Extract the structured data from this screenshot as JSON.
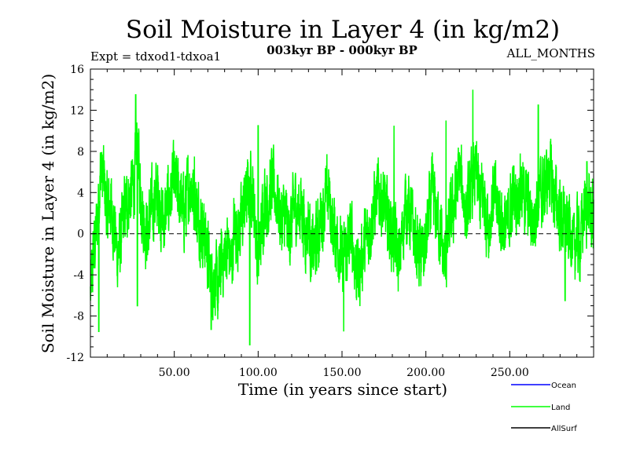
{
  "chart_data": {
    "type": "line",
    "title": "Soil Moisture in Layer 4 (in kg/m2)",
    "subtitle": "003kyr BP - 000kyr BP",
    "experiment": "Expt = tdxod1-tdxoa1",
    "months_label": "ALL_MONTHS",
    "xlabel": "Time (in years since start)",
    "ylabel": "Soil Moisture in Layer 4 (in kg/m2)",
    "xlim": [
      0,
      300
    ],
    "ylim": [
      -12,
      16
    ],
    "xticks": [
      50,
      100,
      150,
      200,
      250
    ],
    "xtick_labels": [
      "50.00",
      "100.00",
      "150.00",
      "200.00",
      "250.00"
    ],
    "yticks": [
      -12,
      -8,
      -4,
      0,
      4,
      8,
      12,
      16
    ],
    "ytick_labels": [
      "-12",
      "-8",
      "-4",
      "0",
      "4",
      "8",
      "12",
      "16"
    ],
    "zero_line": 0,
    "samples_per_year": 12,
    "series": [
      {
        "name": "Land",
        "color": "#00ff00",
        "anchors_x": [
          0,
          2,
          4,
          6,
          8,
          10,
          12,
          14,
          16,
          18,
          20,
          22,
          24,
          26,
          28,
          30,
          32,
          34,
          36,
          38,
          40,
          42,
          44,
          46,
          48,
          50,
          52,
          54,
          56,
          58,
          60,
          62,
          64,
          66,
          68,
          70,
          72,
          74,
          76,
          78,
          80,
          82,
          84,
          86,
          88,
          90,
          92,
          94,
          96,
          98,
          100,
          102,
          104,
          106,
          108,
          110,
          112,
          114,
          116,
          118,
          120,
          122,
          124,
          126,
          128,
          130,
          132,
          134,
          136,
          138,
          140,
          142,
          144,
          146,
          148,
          150,
          152,
          154,
          156,
          158,
          160,
          162,
          164,
          166,
          168,
          170,
          172,
          174,
          176,
          178,
          180,
          182,
          184,
          186,
          188,
          190,
          192,
          194,
          196,
          198,
          200,
          202,
          204,
          206,
          208,
          210,
          212,
          214,
          216,
          218,
          220,
          222,
          224,
          226,
          228,
          230,
          232,
          234,
          236,
          238,
          240,
          242,
          244,
          246,
          248,
          250,
          252,
          254,
          256,
          258,
          260,
          262,
          264,
          266,
          268,
          270,
          272,
          274,
          276,
          278,
          280,
          282,
          284,
          286,
          288,
          290,
          292,
          294,
          296,
          298,
          300
        ],
        "anchors_y": [
          -6,
          -2,
          1,
          6,
          5,
          2,
          3,
          1,
          -2,
          -1,
          2,
          3,
          4,
          5,
          9,
          4,
          1,
          0,
          2,
          3,
          4,
          2,
          1,
          3,
          4,
          5,
          4,
          3,
          2,
          4,
          5,
          3,
          2,
          1,
          0,
          -2,
          -5,
          -4,
          -6,
          -3,
          -2,
          -1,
          -3,
          1,
          0,
          1,
          3,
          4,
          5,
          2,
          -4,
          1,
          4,
          3,
          5,
          4,
          3,
          1,
          2,
          0,
          1,
          3,
          2,
          3,
          0,
          1,
          -2,
          -1,
          0,
          2,
          3,
          4,
          1,
          0,
          -1,
          -3,
          -2,
          -1,
          0,
          -3,
          -4,
          -2,
          -1,
          0,
          2,
          3,
          4,
          3,
          2,
          1,
          0,
          -1,
          -3,
          0,
          3,
          2,
          1,
          -1,
          -2,
          -2,
          -1,
          2,
          4,
          2,
          1,
          -2,
          -3,
          1,
          2,
          4,
          6,
          4,
          2,
          3,
          5,
          6,
          3,
          4,
          2,
          1,
          4,
          3,
          2,
          1,
          0,
          2,
          4,
          3,
          5,
          4,
          3,
          2,
          1,
          3,
          4,
          4,
          5,
          6,
          4,
          3,
          2,
          1,
          0,
          1,
          -2,
          0,
          -1,
          2,
          3,
          2,
          1
        ],
        "noise_amplitude": 2.8,
        "spikes": [
          [
            27,
            13.5
          ],
          [
            95,
            -10.8
          ],
          [
            228,
            14
          ],
          [
            212,
            11
          ],
          [
            100,
            10.5
          ],
          [
            267,
            12.5
          ],
          [
            72,
            -9.3
          ],
          [
            5,
            -9.5
          ],
          [
            151,
            -9.5
          ],
          [
            181,
            10.5
          ],
          [
            62,
            7.5
          ],
          [
            28,
            -7
          ],
          [
            296,
            7
          ],
          [
            283,
            -6.5
          ]
        ]
      }
    ],
    "legend": [
      {
        "name": "Ocean",
        "color": "#0000ff"
      },
      {
        "name": "Land",
        "color": "#00ff00"
      },
      {
        "name": "AllSurf",
        "color": "#000000"
      }
    ]
  }
}
